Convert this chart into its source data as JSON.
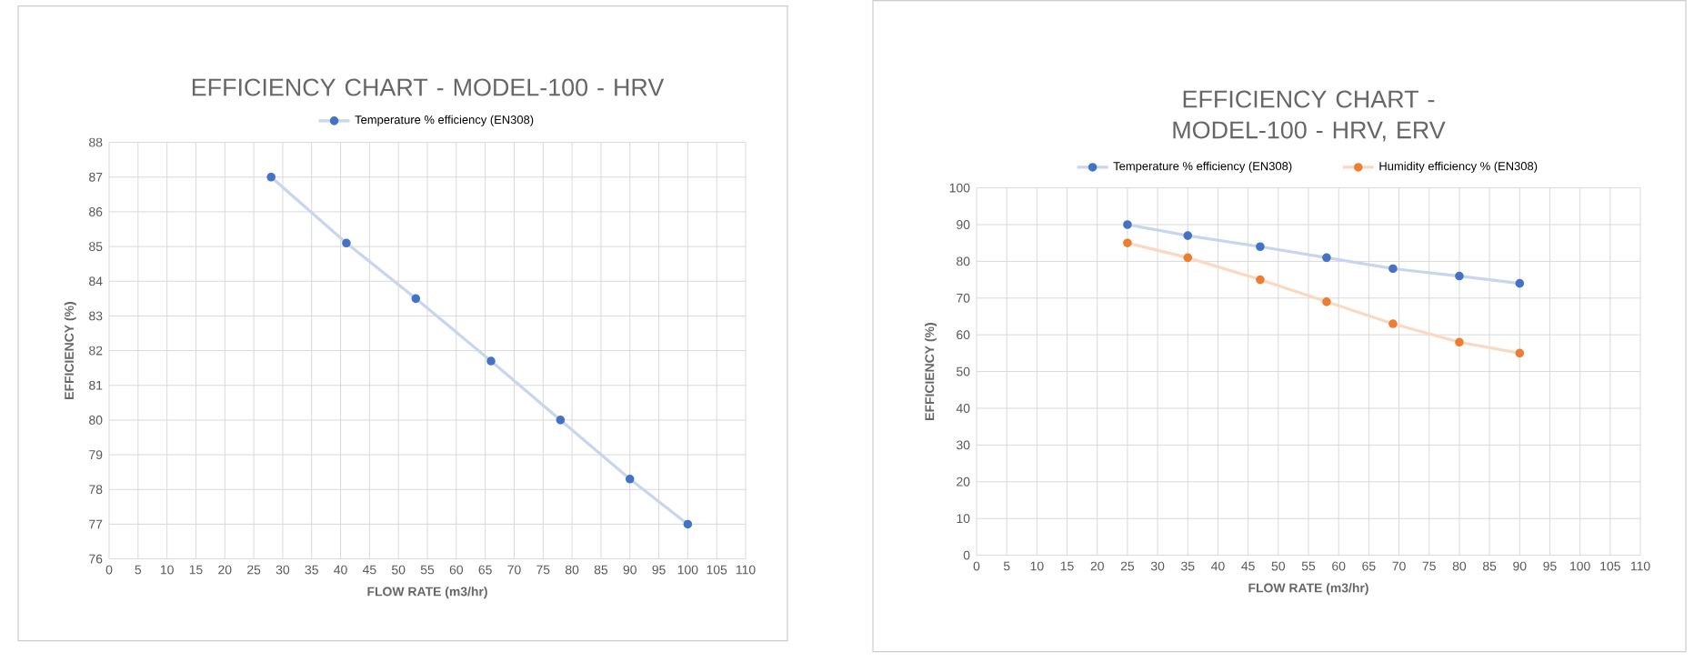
{
  "chart_data": [
    {
      "type": "line",
      "title": "EFFICIENCY CHART - MODEL-100 - HRV",
      "xlabel": "FLOW RATE (m3/hr)",
      "ylabel": "EFFICIENCY (%)",
      "x": [
        28,
        41,
        53,
        66,
        78,
        90,
        100
      ],
      "series": [
        {
          "name": "Temperature % efficiency (EN308)",
          "color": "#4472c4",
          "values": [
            87,
            85.1,
            83.5,
            81.7,
            80,
            78.3,
            77
          ]
        }
      ],
      "xlim": [
        0,
        110
      ],
      "xticks": [
        0,
        5,
        10,
        15,
        20,
        25,
        30,
        35,
        40,
        45,
        50,
        55,
        60,
        65,
        70,
        75,
        80,
        85,
        90,
        95,
        100,
        105,
        110
      ],
      "ylim": [
        76,
        88
      ],
      "yticks": [
        76,
        77,
        78,
        79,
        80,
        81,
        82,
        83,
        84,
        85,
        86,
        87,
        88
      ],
      "grid": true,
      "legend": "top",
      "marker": "circle",
      "line_style": "solid"
    },
    {
      "type": "line",
      "title": "EFFICIENCY CHART - MODEL-100 - HRV, ERV",
      "xlabel": "FLOW RATE (m3/hr)",
      "ylabel": "EFFICIENCY (%)",
      "x": [
        25,
        35,
        47,
        58,
        69,
        80,
        90
      ],
      "series": [
        {
          "name": "Temperature % efficiency (EN308)",
          "color": "#4472c4",
          "values": [
            90,
            87,
            84,
            81,
            78,
            76,
            74
          ]
        },
        {
          "name": "Humidity efficiency % (EN308)",
          "color": "#ed7d31",
          "values": [
            85,
            81,
            75,
            69,
            63,
            58,
            55
          ]
        }
      ],
      "xlim": [
        0,
        110
      ],
      "xticks": [
        0,
        5,
        10,
        15,
        20,
        25,
        30,
        35,
        40,
        45,
        50,
        55,
        60,
        65,
        70,
        75,
        80,
        85,
        90,
        95,
        100,
        105,
        110
      ],
      "ylim": [
        0,
        100
      ],
      "yticks": [
        0,
        10,
        20,
        30,
        40,
        50,
        60,
        70,
        80,
        90,
        100
      ],
      "grid": true,
      "legend": "top",
      "marker": "circle",
      "line_style": "solid"
    }
  ]
}
